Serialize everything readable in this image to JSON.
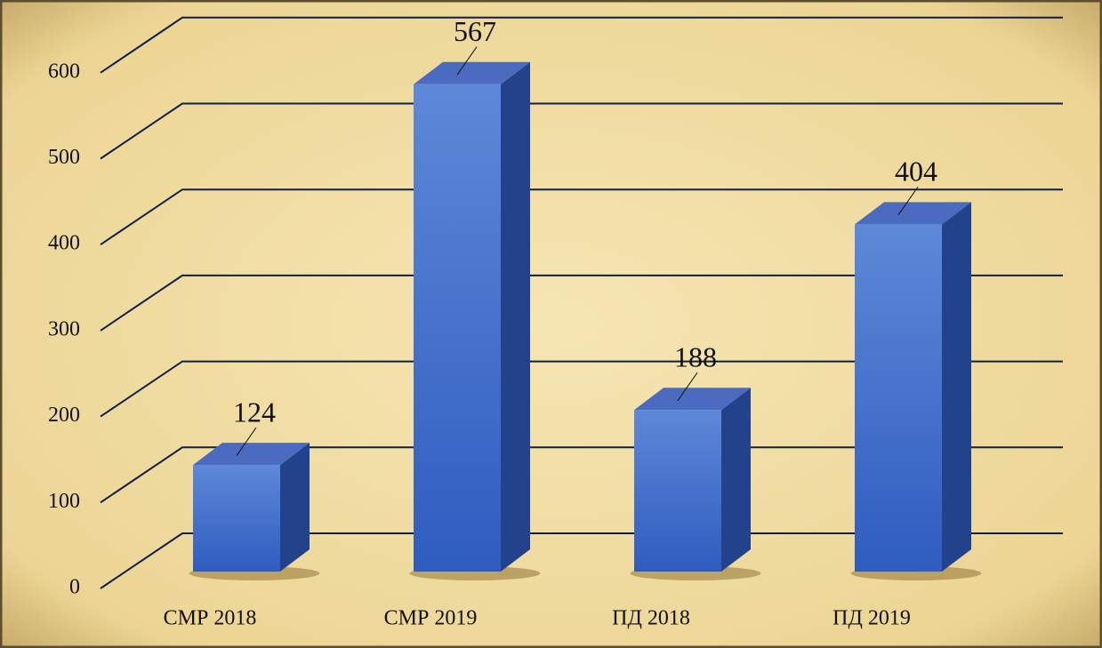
{
  "chart_data": {
    "type": "bar3d",
    "categories": [
      "СМР 2018",
      "СМР 2019",
      "ПД 2018",
      "ПД 2019"
    ],
    "values": [
      124,
      567,
      188,
      404
    ],
    "color": "#3f6fd0",
    "ylim": [
      0,
      700
    ],
    "yticks": [
      0,
      100,
      200,
      300,
      400,
      500,
      600
    ],
    "grid": true
  }
}
